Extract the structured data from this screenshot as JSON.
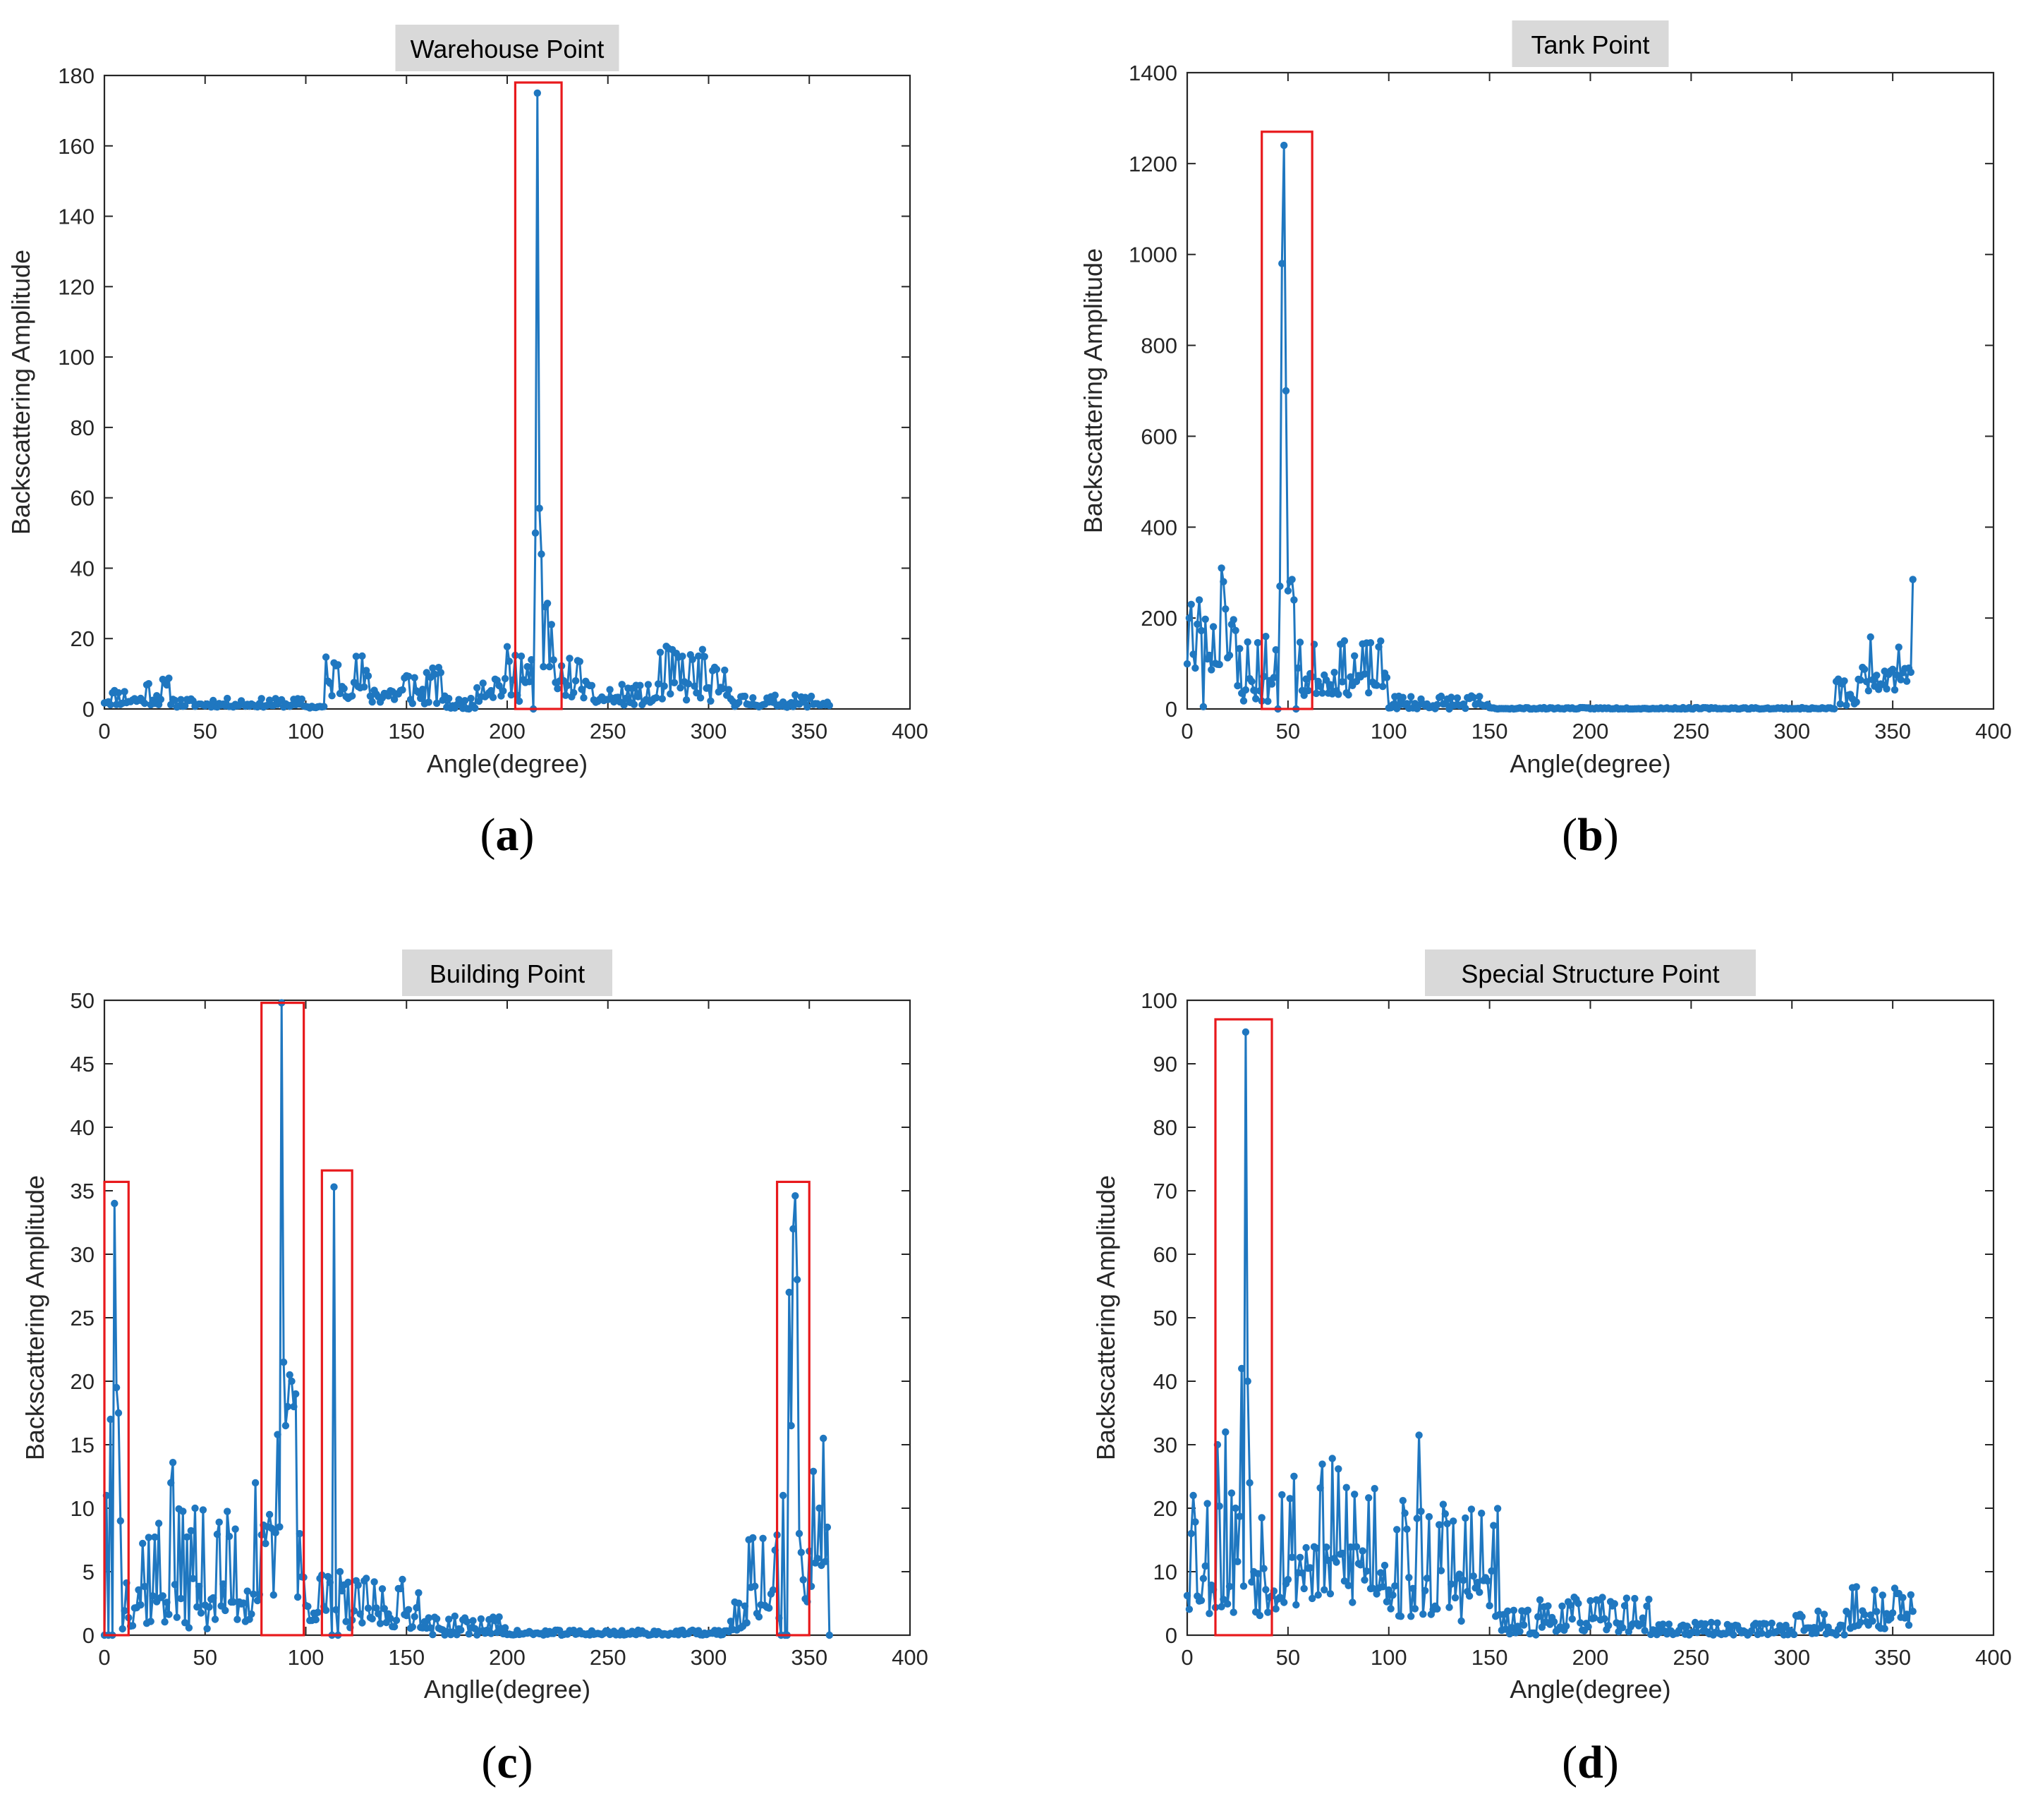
{
  "colors": {
    "series": "#1f77c0",
    "highlight_box": "#e8191c",
    "title_background": "#d9d9d9",
    "axis": "#262626"
  },
  "chart_data": [
    {
      "type": "line",
      "label": "(a)",
      "letter": "a",
      "title": "Warehouse Point",
      "xlabel": "Angle(degree)",
      "ylabel": "Backscattering Amplitude",
      "xlim": [
        0,
        400
      ],
      "ylim": [
        0,
        180
      ],
      "xticks": [
        0,
        50,
        100,
        150,
        200,
        250,
        300,
        350,
        400
      ],
      "yticks": [
        0,
        20,
        40,
        60,
        80,
        100,
        120,
        140,
        160,
        180
      ],
      "seed": 11,
      "peaks": [
        [
          214,
          50
        ],
        [
          215,
          175
        ],
        [
          216,
          57
        ],
        [
          217,
          44
        ],
        [
          218,
          12
        ],
        [
          219,
          29
        ],
        [
          220,
          30
        ],
        [
          221,
          12
        ],
        [
          222,
          24
        ],
        [
          207,
          15
        ],
        [
          210,
          12
        ],
        [
          212,
          14
        ]
      ],
      "segments": [
        [
          0,
          20,
          1,
          6
        ],
        [
          20,
          35,
          1,
          9
        ],
        [
          35,
          100,
          0.5,
          3
        ],
        [
          100,
          110,
          0.2,
          1.5
        ],
        [
          110,
          130,
          3,
          16
        ],
        [
          130,
          170,
          1,
          12
        ],
        [
          170,
          185,
          0,
          3
        ],
        [
          185,
          213,
          2,
          18
        ],
        [
          223,
          240,
          3,
          15
        ],
        [
          240,
          275,
          1,
          7
        ],
        [
          275,
          300,
          2,
          18
        ],
        [
          300,
          313,
          2,
          12
        ],
        [
          313,
          361,
          0.5,
          4
        ]
      ],
      "boxes": [
        [
          204,
          227,
          0,
          178
        ]
      ]
    },
    {
      "type": "line",
      "label": "(b)",
      "letter": "b",
      "title": "Tank Point",
      "xlabel": "Angle(degree)",
      "ylabel": "Backscattering Amplitude",
      "xlim": [
        0,
        400
      ],
      "ylim": [
        0,
        1400
      ],
      "xticks": [
        0,
        50,
        100,
        150,
        200,
        250,
        300,
        350,
        400
      ],
      "yticks": [
        0,
        200,
        400,
        600,
        800,
        1000,
        1200,
        1400
      ],
      "seed": 23,
      "peaks": [
        [
          1,
          200
        ],
        [
          2,
          230
        ],
        [
          4,
          90
        ],
        [
          6,
          240
        ],
        [
          8,
          5
        ],
        [
          10,
          110
        ],
        [
          17,
          310
        ],
        [
          18,
          280
        ],
        [
          19,
          220
        ],
        [
          44,
          130
        ],
        [
          46,
          270
        ],
        [
          47,
          980
        ],
        [
          48,
          1240
        ],
        [
          49,
          700
        ],
        [
          50,
          260
        ],
        [
          51,
          280
        ],
        [
          52,
          285
        ],
        [
          53,
          240
        ],
        [
          55,
          90
        ],
        [
          58,
          30
        ],
        [
          360,
          285
        ]
      ],
      "segments": [
        [
          0,
          25,
          80,
          210
        ],
        [
          25,
          44,
          10,
          170
        ],
        [
          56,
          100,
          30,
          150
        ],
        [
          100,
          150,
          0,
          30
        ],
        [
          150,
          322,
          0,
          3
        ],
        [
          322,
          335,
          5,
          70
        ],
        [
          335,
          360,
          40,
          170
        ]
      ],
      "boxes": [
        [
          37,
          62,
          0,
          1270
        ]
      ]
    },
    {
      "type": "line",
      "label": "(c)",
      "letter": "c",
      "title": "Building Point",
      "xlabel": "Anglle(degree)",
      "ylabel": "Backscattering Amplitude",
      "xlim": [
        0,
        400
      ],
      "ylim": [
        0,
        50
      ],
      "xticks": [
        0,
        50,
        100,
        150,
        200,
        250,
        300,
        350,
        400
      ],
      "yticks": [
        0,
        5,
        10,
        15,
        20,
        25,
        30,
        35,
        40,
        45,
        50
      ],
      "seed": 37,
      "peaks": [
        [
          1,
          11
        ],
        [
          3,
          17
        ],
        [
          5,
          34
        ],
        [
          6,
          19.5
        ],
        [
          7,
          17.5
        ],
        [
          8,
          9
        ],
        [
          9,
          0.5
        ],
        [
          33,
          12
        ],
        [
          34,
          13.6
        ],
        [
          45,
          10
        ],
        [
          75,
          12
        ],
        [
          82,
          9.5
        ],
        [
          86,
          15.8
        ],
        [
          88,
          49.8
        ],
        [
          89,
          21.5
        ],
        [
          90,
          16.5
        ],
        [
          91,
          18
        ],
        [
          92,
          20.5
        ],
        [
          93,
          20
        ],
        [
          94,
          18
        ],
        [
          95,
          19
        ],
        [
          96,
          3
        ],
        [
          114,
          35.3
        ],
        [
          115,
          2
        ],
        [
          117,
          5
        ],
        [
          337,
          11
        ],
        [
          340,
          27
        ],
        [
          341,
          16.5
        ],
        [
          342,
          32
        ],
        [
          343,
          34.6
        ],
        [
          344,
          28
        ],
        [
          345,
          8
        ],
        [
          355,
          10
        ],
        [
          357,
          15.5
        ],
        [
          358,
          5.8
        ],
        [
          359,
          8.5
        ]
      ],
      "segments": [
        [
          10,
          75,
          0.5,
          10
        ],
        [
          75,
          100,
          2,
          9
        ],
        [
          100,
          113,
          1,
          5
        ],
        [
          118,
          160,
          0.5,
          4.5
        ],
        [
          160,
          200,
          0,
          1.5
        ],
        [
          200,
          310,
          0,
          0.4
        ],
        [
          310,
          320,
          0.2,
          3
        ],
        [
          320,
          336,
          1,
          8
        ],
        [
          346,
          360,
          2,
          13
        ]
      ],
      "boxes": [
        [
          0,
          12,
          0,
          35.7
        ],
        [
          78,
          99,
          0,
          49.8
        ],
        [
          108,
          123,
          0,
          36.6
        ],
        [
          334,
          350,
          0,
          35.7
        ]
      ]
    },
    {
      "type": "line",
      "label": "(d)",
      "letter": "d",
      "title": "Special Structure Point",
      "xlabel": "Angle(degree)",
      "ylabel": "Backscattering Amplitude",
      "xlim": [
        0,
        400
      ],
      "ylim": [
        0,
        100
      ],
      "xticks": [
        0,
        50,
        100,
        150,
        200,
        250,
        300,
        350,
        400
      ],
      "yticks": [
        0,
        10,
        20,
        30,
        40,
        50,
        60,
        70,
        80,
        90,
        100
      ],
      "seed": 53,
      "peaks": [
        [
          2,
          16
        ],
        [
          3,
          22
        ],
        [
          15,
          30
        ],
        [
          19,
          32
        ],
        [
          24,
          20
        ],
        [
          27,
          42
        ],
        [
          29,
          95
        ],
        [
          30,
          40
        ],
        [
          31,
          24
        ],
        [
          33,
          10
        ],
        [
          115,
          31.5
        ]
      ],
      "segments": [
        [
          0,
          45,
          3,
          24
        ],
        [
          45,
          100,
          4,
          28
        ],
        [
          100,
          155,
          2,
          22
        ],
        [
          155,
          175,
          0,
          4
        ],
        [
          175,
          230,
          0.5,
          6
        ],
        [
          230,
          300,
          0,
          2
        ],
        [
          300,
          330,
          0,
          4
        ],
        [
          330,
          361,
          1,
          8
        ]
      ],
      "boxes": [
        [
          14,
          42,
          0,
          97
        ]
      ]
    }
  ]
}
